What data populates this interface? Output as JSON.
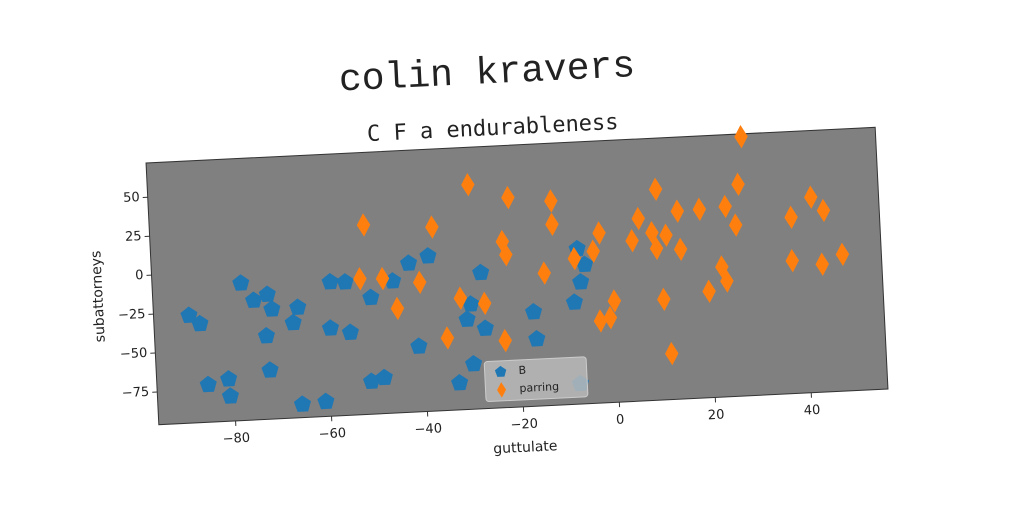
{
  "chart_data": {
    "type": "scatter",
    "title": "colin kravers",
    "subtitle": "C F a endurableness",
    "x_label": "guttulate",
    "y_label": "subattorneys",
    "xlim": [
      -96,
      56
    ],
    "ylim": [
      -96,
      72
    ],
    "xticks": [
      {
        "value": -80,
        "label": "−80"
      },
      {
        "value": -60,
        "label": "−60"
      },
      {
        "value": -40,
        "label": "−40"
      },
      {
        "value": -20,
        "label": "−20"
      },
      0,
      20,
      40
    ],
    "yticks": [
      {
        "value": -75,
        "label": "−75"
      },
      {
        "value": -50,
        "label": "−50"
      },
      {
        "value": -25,
        "label": "−25"
      },
      0,
      25,
      50
    ],
    "legend": "lower center",
    "series": [
      {
        "name": "B",
        "color": "#1f77b4",
        "marker": "pentagon",
        "x": [
          -88.6,
          -86.4,
          -77.5,
          -75,
          -72.1,
          -71.3,
          -65.9,
          -67,
          -72.7,
          -72.3,
          -85.3,
          -81,
          -80.8,
          -65.9,
          -61,
          -58.9,
          -55.8,
          -59.3,
          -55.2,
          -50.6,
          -45.9,
          -51.3,
          -48.6,
          -42.4,
          -38.3,
          -41.1,
          -33,
          -29.9,
          -30.8,
          -27.5,
          -27.1,
          -29.9,
          -16.9,
          -16.5,
          -8.3,
          -6.8,
          -7.2,
          -5.8,
          -7.9
        ],
        "values": [
          -27,
          -32.7,
          -8,
          -19.4,
          -16,
          -25.6,
          -25.3,
          -35,
          -42.6,
          -64.6,
          -72,
          -69,
          -80,
          -87.5,
          -86.5,
          -10,
          -10.5,
          -39.6,
          -43,
          -21.3,
          -11.4,
          -75,
          -73,
          -0.5,
          3.5,
          -54,
          -78.7,
          -28.6,
          -38.3,
          -8.8,
          -44.6,
          -67,
          -35.6,
          -53,
          -30.7,
          -17.9,
          3.5,
          -6.8,
          -83
        ]
      },
      {
        "name": "parring",
        "color": "#ff7f0e",
        "marker": "diamond",
        "x": [
          -51.4,
          -52.7,
          -48,
          -45.2,
          -37.2,
          -40.3,
          -35.1,
          -29.3,
          -32,
          -27,
          -21.1,
          -22.7,
          -22.1,
          -23.1,
          -14.3,
          -12.2,
          -12.2,
          -7.9,
          -3.9,
          -2.5,
          0,
          -3.1,
          -1,
          4.3,
          5.8,
          8.5,
          9.7,
          9.3,
          11.4,
          10.3,
          11.4,
          14,
          14.3,
          18.6,
          19.8,
          22.7,
          23.6,
          24,
          26,
          26.9,
          28,
          37.6,
          37.4,
          41.9,
          44.4,
          43.6,
          47.9
        ],
        "values": [
          25.5,
          -8.9,
          -9.4,
          -29,
          22,
          -13,
          -49.5,
          48,
          -24.4,
          -28.5,
          38.5,
          10.5,
          2,
          -53,
          -11,
          35,
          20,
          -2.6,
          1.4,
          13,
          -31,
          -43.4,
          -41.6,
          7,
          21,
          11.5,
          39.2,
          1.3,
          9.5,
          -31.5,
          -66.5,
          24.5,
          0,
          25,
          -27.8,
          -12.6,
          -21.8,
          26,
          13.8,
          39.8,
          70.2,
          17,
          -10.8,
          29.3,
          20.4,
          -14,
          -8.3
        ]
      }
    ]
  }
}
